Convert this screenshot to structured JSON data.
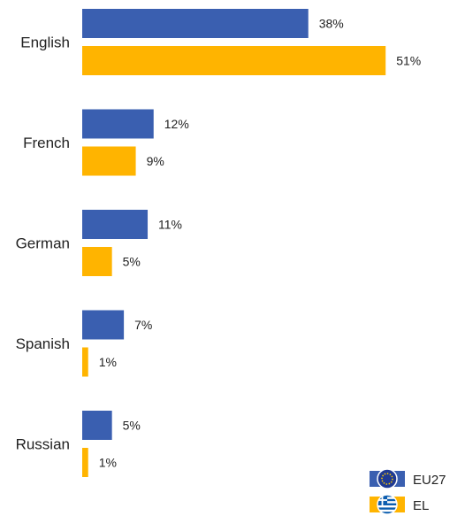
{
  "chart_data": {
    "type": "bar",
    "orientation": "horizontal",
    "categories": [
      "English",
      "French",
      "German",
      "Spanish",
      "Russian"
    ],
    "series": [
      {
        "name": "EU27",
        "values": [
          38,
          12,
          11,
          7,
          5
        ],
        "color": "#3A5FB0"
      },
      {
        "name": "EL",
        "values": [
          51,
          9,
          5,
          1,
          1
        ],
        "color": "#FFB400"
      }
    ],
    "value_suffix": "%",
    "xlim": [
      0,
      60
    ],
    "grid": false,
    "legend_position": "bottom-right",
    "legend_icons": [
      "eu-flag-icon",
      "greece-flag-icon"
    ]
  }
}
